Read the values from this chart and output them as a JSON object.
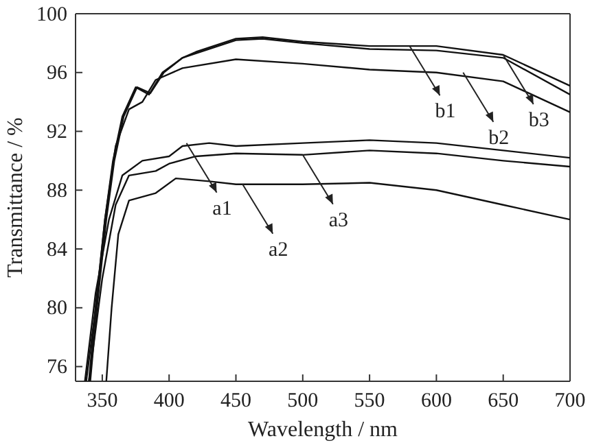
{
  "chart_data": {
    "type": "line",
    "xlabel": "Wavelength / nm",
    "ylabel": "Transmittance / %",
    "xlim": [
      330,
      700
    ],
    "ylim": [
      75,
      100
    ],
    "xticks": [
      350,
      400,
      450,
      500,
      550,
      600,
      650,
      700
    ],
    "yticks": [
      76,
      80,
      84,
      88,
      92,
      96,
      100
    ],
    "grid": false,
    "marker": "none",
    "line_style": "solid",
    "series": [
      {
        "color": "#111111",
        "x": [
          337,
          345,
          355,
          365,
          380,
          400,
          410,
          430,
          450,
          500,
          550,
          600,
          650,
          700
        ],
        "values": [
          75,
          81,
          86,
          89,
          90,
          90.3,
          91,
          91.2,
          91,
          91.2,
          91.4,
          91.2,
          90.7,
          90.2
        ]
      },
      {
        "color": "#111111",
        "x": [
          353,
          357,
          362,
          370,
          390,
          405,
          430,
          450,
          500,
          550,
          600,
          650,
          700
        ],
        "values": [
          75,
          80,
          85,
          87.3,
          87.8,
          88.8,
          88.6,
          88.4,
          88.4,
          88.5,
          88,
          87,
          86
        ]
      },
      {
        "color": "#111111",
        "x": [
          340,
          350,
          360,
          370,
          390,
          400,
          420,
          450,
          500,
          550,
          600,
          650,
          700
        ],
        "values": [
          75,
          82,
          87,
          89,
          89.3,
          89.8,
          90.3,
          90.5,
          90.4,
          90.7,
          90.5,
          90,
          89.6
        ]
      },
      {
        "color": "#111111",
        "x": [
          340,
          345,
          352,
          358,
          365,
          375,
          385,
          395,
          410,
          420,
          450,
          470,
          500,
          550,
          600,
          650,
          700
        ],
        "values": [
          75,
          80,
          86,
          90,
          93,
          95,
          94.5,
          96,
          97,
          97.4,
          98.3,
          98.4,
          98.1,
          97.8,
          97.8,
          97.2,
          95.1
        ]
      },
      {
        "color": "#111111",
        "x": [
          338,
          345,
          352,
          360,
          370,
          380,
          390,
          410,
          450,
          500,
          550,
          600,
          650,
          700
        ],
        "values": [
          75,
          80,
          86,
          91,
          93.5,
          94,
          95.5,
          96.3,
          96.9,
          96.6,
          96.2,
          96,
          95.4,
          93.3
        ]
      },
      {
        "color": "#111111",
        "x": [
          341,
          346,
          353,
          359,
          366,
          376,
          386,
          396,
          410,
          420,
          450,
          470,
          500,
          550,
          600,
          650,
          700
        ],
        "values": [
          75,
          80,
          86,
          90,
          93,
          95,
          94.6,
          96,
          97,
          97.3,
          98.2,
          98.3,
          98,
          97.6,
          97.5,
          97,
          94.5
        ]
      }
    ],
    "annotations": [
      {
        "text": "a1",
        "x": 413,
        "y": 91.2
      },
      {
        "text": "a2",
        "x": 455,
        "y": 88.4
      },
      {
        "text": "a3",
        "x": 500,
        "y": 90.4
      },
      {
        "text": "b1",
        "x": 580,
        "y": 97.8
      },
      {
        "text": "b2",
        "x": 620,
        "y": 96
      },
      {
        "text": "b3",
        "x": 650,
        "y": 97.2
      }
    ]
  }
}
